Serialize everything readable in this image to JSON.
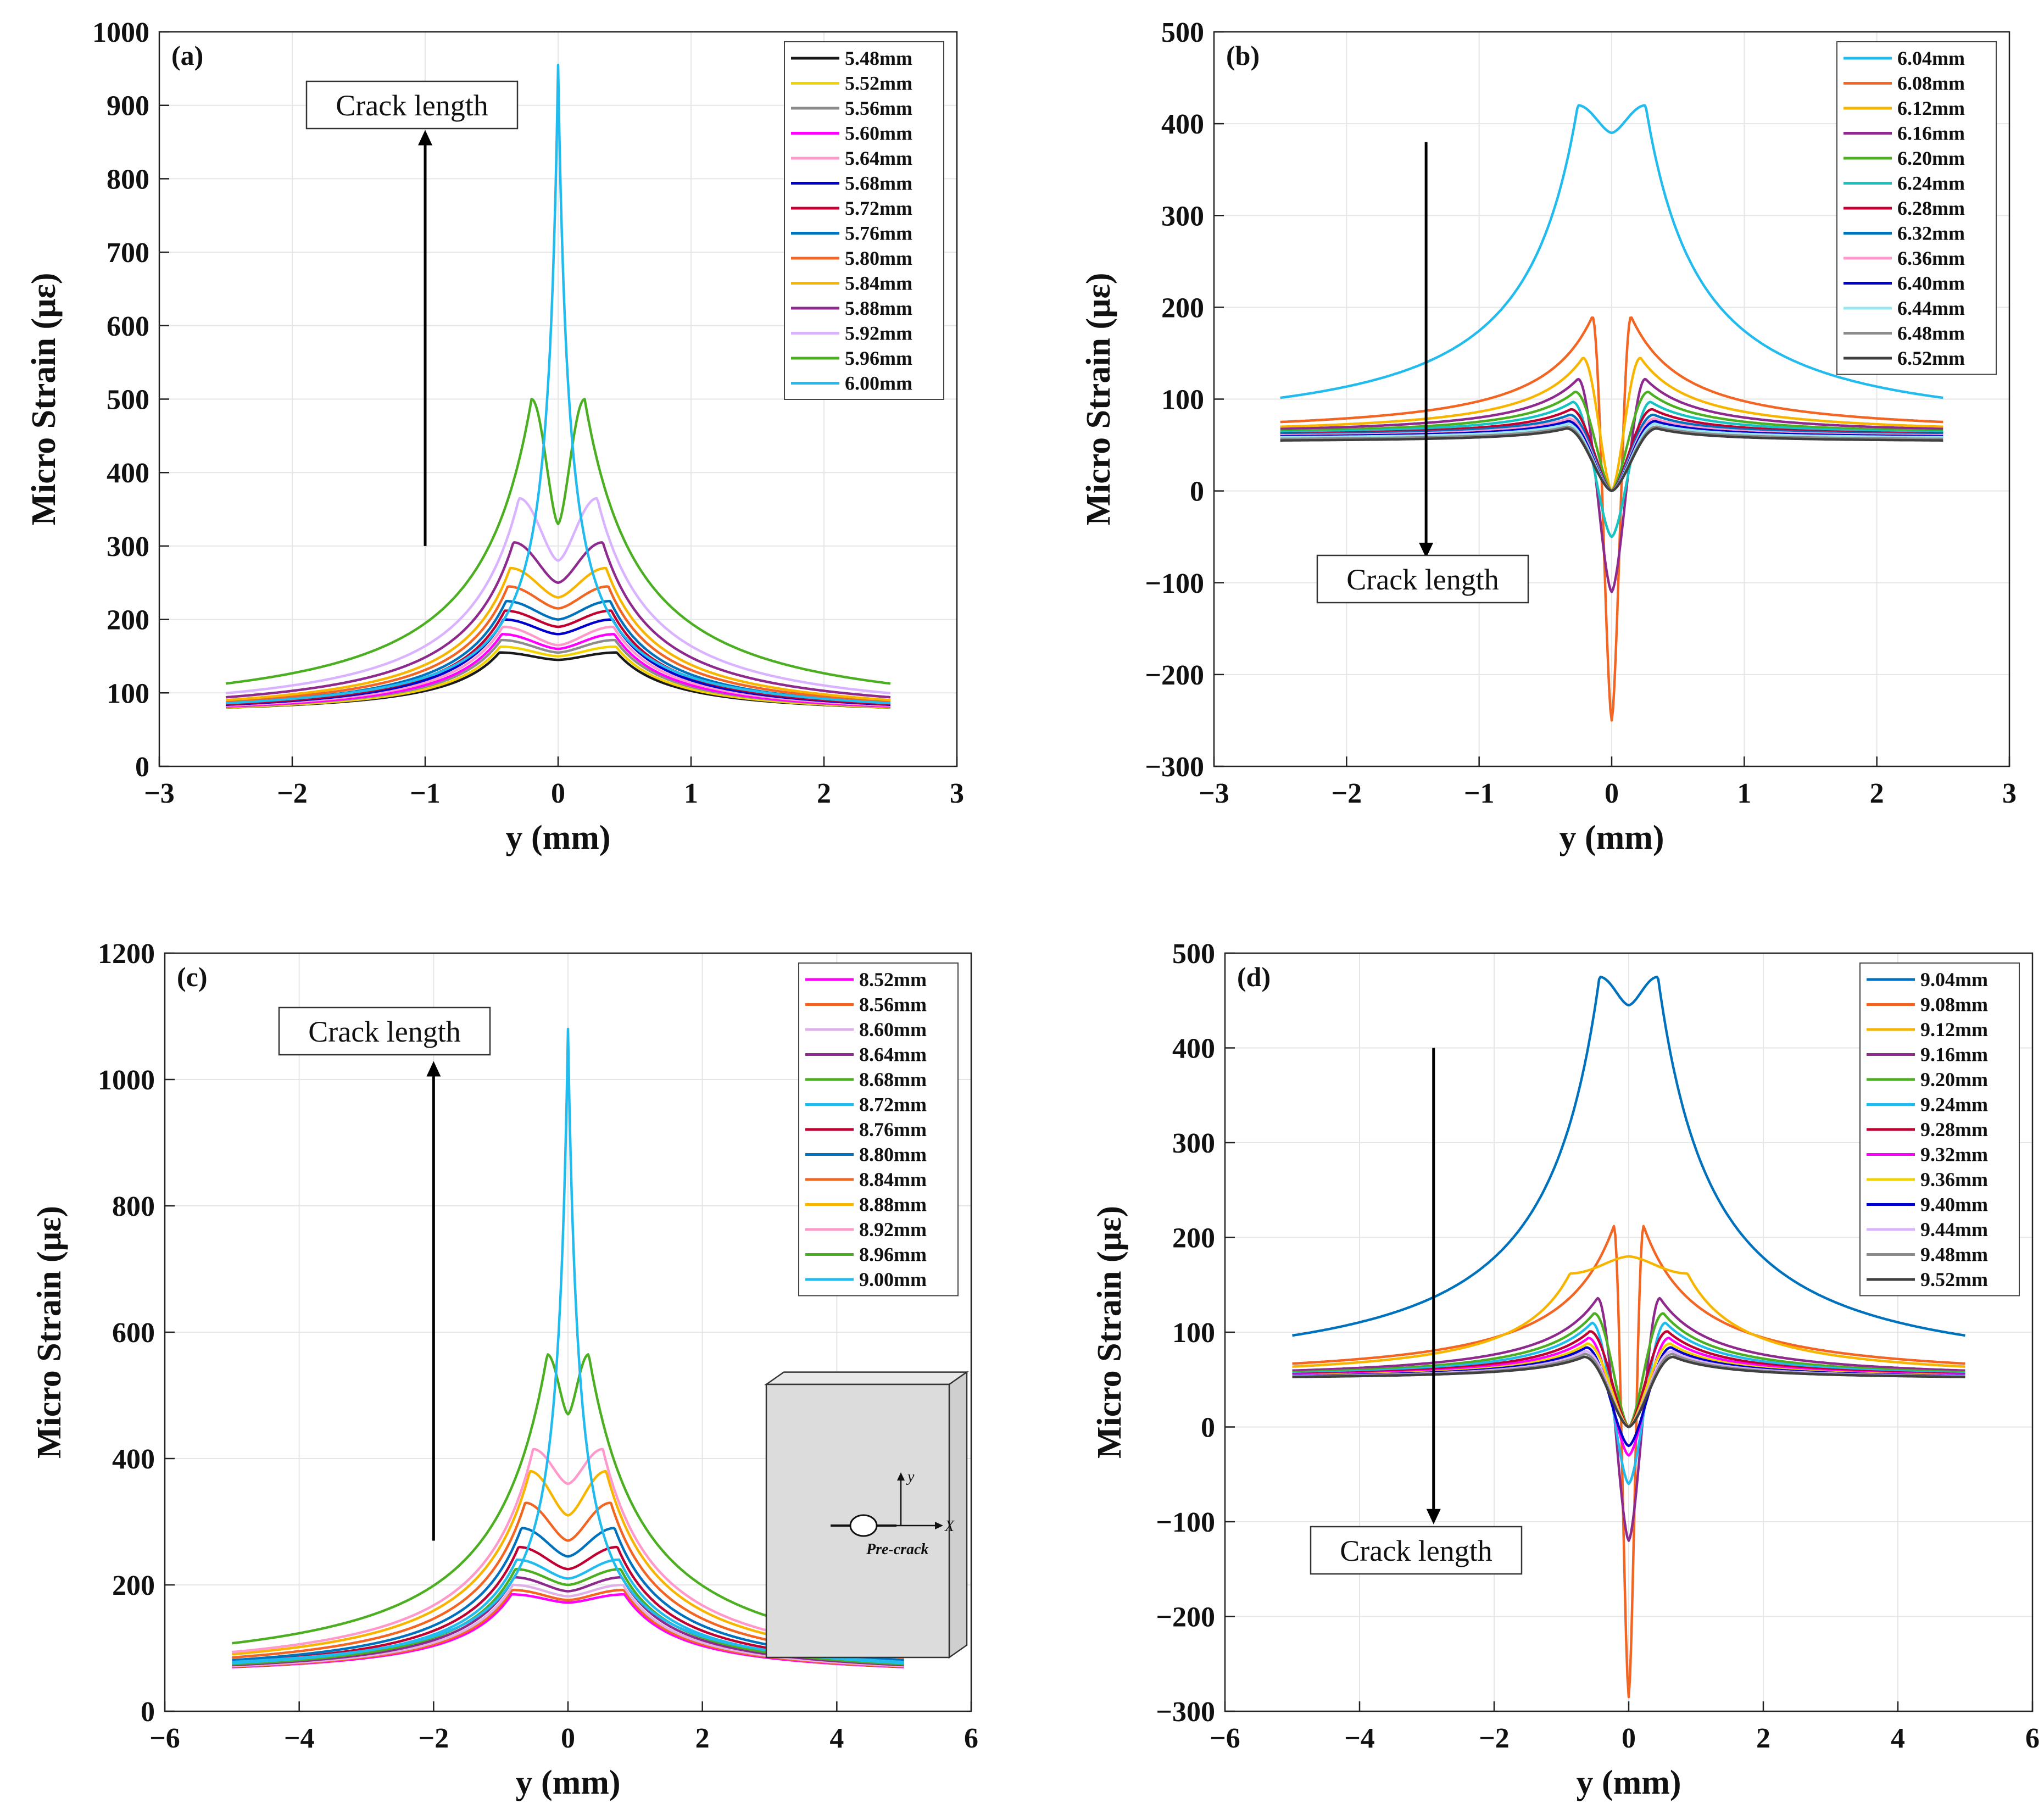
{
  "chart_data": [
    {
      "panel": "(a)",
      "type": "line",
      "xlabel": "y (mm)",
      "ylabel": "Micro Strain (με)",
      "xlim": [
        -3,
        3
      ],
      "ylim": [
        0,
        1000
      ],
      "xticks": [
        -3,
        -2,
        -1,
        0,
        1,
        2,
        3
      ],
      "yticks": [
        0,
        100,
        200,
        300,
        400,
        500,
        600,
        700,
        800,
        900,
        1000
      ],
      "annotation": "Crack length",
      "arrow_direction": "up",
      "legend_position": "top-right",
      "series": [
        {
          "name": "5.48mm",
          "color": "#1a1a1a",
          "peak": 155,
          "center": 145,
          "far": 85
        },
        {
          "name": "5.52mm",
          "color": "#f2d300",
          "peak": 163,
          "center": 150,
          "far": 84
        },
        {
          "name": "5.56mm",
          "color": "#8c8c8c",
          "peak": 172,
          "center": 155,
          "far": 84
        },
        {
          "name": "5.60mm",
          "color": "#ff00ff",
          "peak": 180,
          "center": 160,
          "far": 83
        },
        {
          "name": "5.64mm",
          "color": "#ff99cc",
          "peak": 190,
          "center": 165,
          "far": 83
        },
        {
          "name": "5.68mm",
          "color": "#0000cc",
          "peak": 200,
          "center": 180,
          "far": 83
        },
        {
          "name": "5.72mm",
          "color": "#c00030",
          "peak": 212,
          "center": 190,
          "far": 82
        },
        {
          "name": "5.76mm",
          "color": "#0072bd",
          "peak": 225,
          "center": 200,
          "far": 82
        },
        {
          "name": "5.80mm",
          "color": "#f26522",
          "peak": 245,
          "center": 215,
          "far": 82
        },
        {
          "name": "5.84mm",
          "color": "#f7b500",
          "peak": 270,
          "center": 230,
          "far": 81
        },
        {
          "name": "5.88mm",
          "color": "#8e2a8e",
          "peak": 305,
          "center": 250,
          "far": 81
        },
        {
          "name": "5.92mm",
          "color": "#d9b3ff",
          "peak": 365,
          "center": 280,
          "far": 80
        },
        {
          "name": "5.96mm",
          "color": "#4caf22",
          "peak": 500,
          "center": 330,
          "far": 80
        },
        {
          "name": "6.00mm",
          "color": "#22bbee",
          "peak": 955,
          "center": 955,
          "far": 78
        }
      ]
    },
    {
      "panel": "(b)",
      "type": "line",
      "xlabel": "y (mm)",
      "ylabel": "Micro Strain (με)",
      "xlim": [
        -3,
        3
      ],
      "ylim": [
        -300,
        500
      ],
      "xticks": [
        -3,
        -2,
        -1,
        0,
        1,
        2,
        3
      ],
      "yticks": [
        -300,
        -200,
        -100,
        0,
        100,
        200,
        300,
        400,
        500
      ],
      "annotation": "Crack length",
      "arrow_direction": "down",
      "legend_position": "top-right",
      "series": [
        {
          "name": "6.04mm",
          "color": "#22bbee",
          "peak": 420,
          "center": 390,
          "far": 75
        },
        {
          "name": "6.08mm",
          "color": "#f26522",
          "peak": 190,
          "center": -250,
          "far": 75
        },
        {
          "name": "6.12mm",
          "color": "#f7b500",
          "peak": 145,
          "center": 0,
          "far": 74
        },
        {
          "name": "6.16mm",
          "color": "#8e2a8e",
          "peak": 122,
          "center": -110,
          "far": 74
        },
        {
          "name": "6.20mm",
          "color": "#4caf22",
          "peak": 108,
          "center": 0,
          "far": 73
        },
        {
          "name": "6.24mm",
          "color": "#16c2c2",
          "peak": 97,
          "center": -50,
          "far": 73
        },
        {
          "name": "6.28mm",
          "color": "#c00030",
          "peak": 89,
          "center": 0,
          "far": 72
        },
        {
          "name": "6.32mm",
          "color": "#0072bd",
          "peak": 83,
          "center": 0,
          "far": 72
        },
        {
          "name": "6.36mm",
          "color": "#ff99cc",
          "peak": 79,
          "center": 0,
          "far": 71
        },
        {
          "name": "6.40mm",
          "color": "#0000cc",
          "peak": 76,
          "center": 0,
          "far": 70
        },
        {
          "name": "6.44mm",
          "color": "#99e6f2",
          "peak": 73,
          "center": 0,
          "far": 69
        },
        {
          "name": "6.48mm",
          "color": "#8c8c8c",
          "peak": 70,
          "center": 0,
          "far": 67
        },
        {
          "name": "6.52mm",
          "color": "#404040",
          "peak": 68,
          "center": 0,
          "far": 65
        }
      ]
    },
    {
      "panel": "(c)",
      "type": "line",
      "xlabel": "y (mm)",
      "ylabel": "Micro Strain (με)",
      "xlim": [
        -6,
        6
      ],
      "ylim": [
        0,
        1200
      ],
      "xticks": [
        -6,
        -4,
        -2,
        0,
        2,
        4,
        6
      ],
      "yticks": [
        0,
        200,
        400,
        600,
        800,
        1000,
        1200
      ],
      "annotation": "Crack length",
      "arrow_direction": "up",
      "legend_position": "top-right",
      "inset": {
        "axis_y": "y",
        "axis_x": "X",
        "label": "Pre-crack"
      },
      "series": [
        {
          "name": "8.52mm",
          "color": "#ff00ff",
          "peak": 185,
          "center": 172,
          "far": 66
        },
        {
          "name": "8.56mm",
          "color": "#f26522",
          "peak": 192,
          "center": 176,
          "far": 66
        },
        {
          "name": "8.60mm",
          "color": "#e0b0e8",
          "peak": 200,
          "center": 182,
          "far": 66
        },
        {
          "name": "8.64mm",
          "color": "#8e2a8e",
          "peak": 212,
          "center": 190,
          "far": 66
        },
        {
          "name": "8.68mm",
          "color": "#4caf22",
          "peak": 225,
          "center": 200,
          "far": 66
        },
        {
          "name": "8.72mm",
          "color": "#22bbee",
          "peak": 240,
          "center": 210,
          "far": 66
        },
        {
          "name": "8.76mm",
          "color": "#c00030",
          "peak": 260,
          "center": 225,
          "far": 66
        },
        {
          "name": "8.80mm",
          "color": "#0072bd",
          "peak": 290,
          "center": 245,
          "far": 65
        },
        {
          "name": "8.84mm",
          "color": "#f26522",
          "peak": 330,
          "center": 270,
          "far": 65
        },
        {
          "name": "8.88mm",
          "color": "#f7b500",
          "peak": 380,
          "center": 310,
          "far": 65
        },
        {
          "name": "8.92mm",
          "color": "#ff99cc",
          "peak": 415,
          "center": 360,
          "far": 65
        },
        {
          "name": "8.96mm",
          "color": "#4caf22",
          "peak": 565,
          "center": 470,
          "far": 65
        },
        {
          "name": "9.00mm",
          "color": "#22bbee",
          "peak": 1080,
          "center": 1080,
          "far": 64
        }
      ]
    },
    {
      "panel": "(d)",
      "type": "line",
      "xlabel": "y (mm)",
      "ylabel": "Micro Strain (με)",
      "xlim": [
        -6,
        6
      ],
      "ylim": [
        -300,
        500
      ],
      "xticks": [
        -6,
        -4,
        -2,
        0,
        2,
        4,
        6
      ],
      "yticks": [
        -300,
        -200,
        -100,
        0,
        100,
        200,
        300,
        400,
        500
      ],
      "annotation": "Crack length",
      "arrow_direction": "down",
      "legend_position": "top-right",
      "series": [
        {
          "name": "9.04mm",
          "color": "#0072bd",
          "peak": 475,
          "center": 445,
          "far": 61
        },
        {
          "name": "9.08mm",
          "color": "#f26522",
          "peak": 212,
          "center": -285,
          "far": 61
        },
        {
          "name": "9.12mm",
          "color": "#f7b500",
          "peak": 162,
          "center": 180,
          "far": 61
        },
        {
          "name": "9.16mm",
          "color": "#8e2a8e",
          "peak": 136,
          "center": -120,
          "far": 61
        },
        {
          "name": "9.20mm",
          "color": "#4caf22",
          "peak": 120,
          "center": 0,
          "far": 61
        },
        {
          "name": "9.24mm",
          "color": "#22bbee",
          "peak": 110,
          "center": -60,
          "far": 61
        },
        {
          "name": "9.28mm",
          "color": "#c00030",
          "peak": 101,
          "center": 0,
          "far": 61
        },
        {
          "name": "9.32mm",
          "color": "#ff00ff",
          "peak": 94,
          "center": -30,
          "far": 61
        },
        {
          "name": "9.36mm",
          "color": "#f2d300",
          "peak": 88,
          "center": 0,
          "far": 61
        },
        {
          "name": "9.40mm",
          "color": "#0000cc",
          "peak": 84,
          "center": -20,
          "far": 61
        },
        {
          "name": "9.44mm",
          "color": "#d9b3ff",
          "peak": 80,
          "center": 0,
          "far": 61
        },
        {
          "name": "9.48mm",
          "color": "#8c8c8c",
          "peak": 77,
          "center": 0,
          "far": 61
        },
        {
          "name": "9.52mm",
          "color": "#404040",
          "peak": 74,
          "center": 0,
          "far": 61
        }
      ]
    }
  ]
}
